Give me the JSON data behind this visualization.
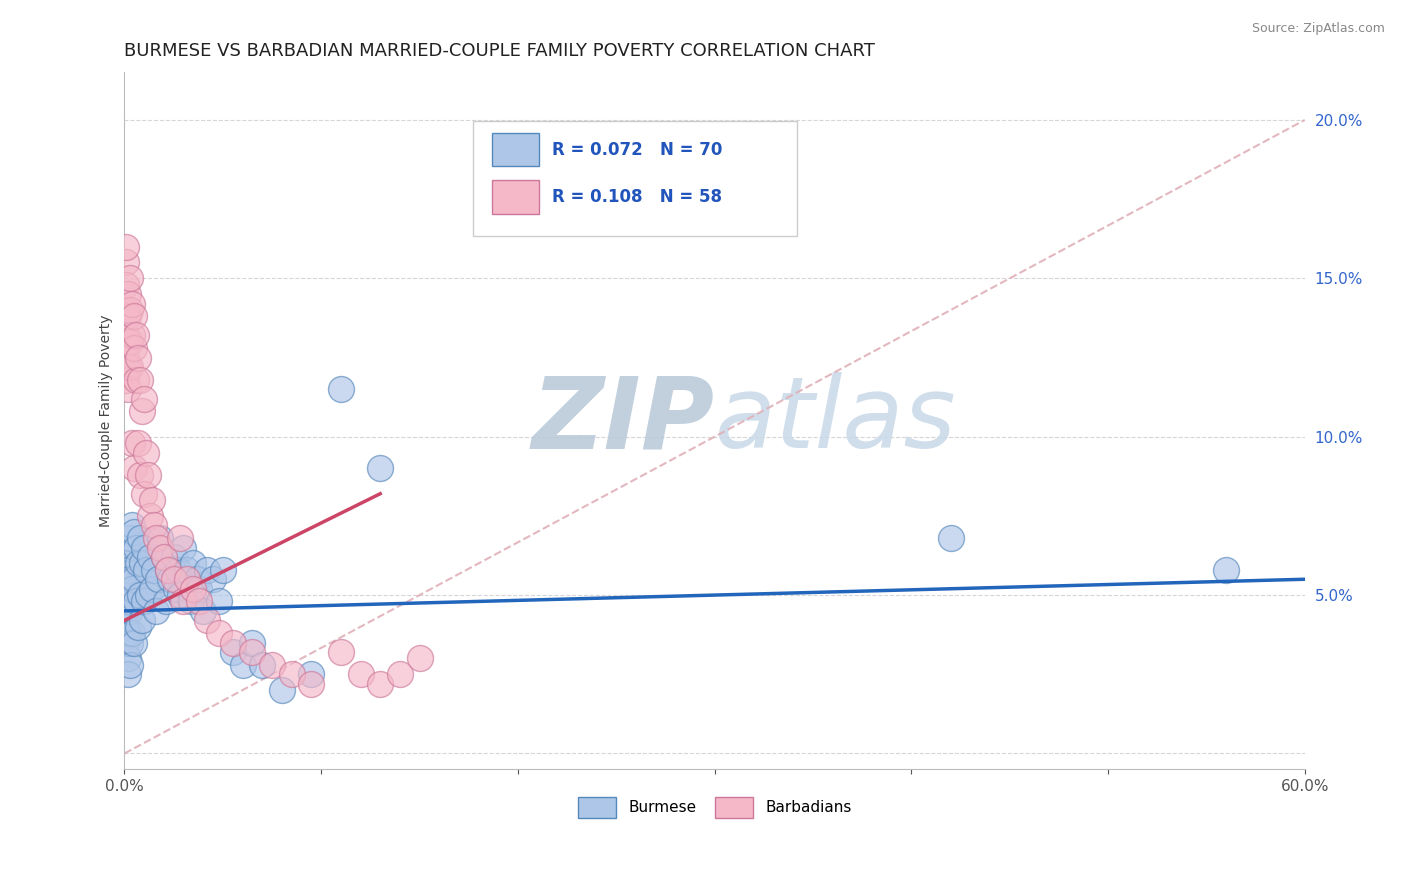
{
  "title": "BURMESE VS BARBADIAN MARRIED-COUPLE FAMILY POVERTY CORRELATION CHART",
  "source_text": "Source: ZipAtlas.com",
  "ylabel": "Married-Couple Family Poverty",
  "xlim": [
    0.0,
    0.6
  ],
  "ylim": [
    -0.005,
    0.215
  ],
  "xticks": [
    0.0,
    0.1,
    0.2,
    0.3,
    0.4,
    0.5,
    0.6
  ],
  "xticklabels": [
    "0.0%",
    "",
    "",
    "",
    "",
    "",
    "60.0%"
  ],
  "yticks": [
    0.0,
    0.05,
    0.1,
    0.15,
    0.2
  ],
  "yticklabels": [
    "",
    "5.0%",
    "10.0%",
    "15.0%",
    "20.0%"
  ],
  "burmese_color": "#aec6e8",
  "burmese_edge_color": "#5588bb",
  "barbadian_color": "#f4b8c8",
  "barbadian_edge_color": "#cc7799",
  "burmese_line_color": "#2266bb",
  "barbadian_line_color": "#cc4466",
  "ref_line_color": "#e0b0b8",
  "watermark_color": "#ccd8e8",
  "background_color": "#ffffff",
  "title_fontsize": 13,
  "axis_label_fontsize": 10,
  "tick_fontsize": 11,
  "legend_color": "#2255bb",
  "burmese_x": [
    0.001,
    0.001,
    0.001,
    0.001,
    0.001,
    0.001,
    0.002,
    0.002,
    0.002,
    0.002,
    0.002,
    0.002,
    0.003,
    0.003,
    0.003,
    0.003,
    0.003,
    0.004,
    0.004,
    0.004,
    0.005,
    0.005,
    0.005,
    0.006,
    0.006,
    0.007,
    0.007,
    0.008,
    0.008,
    0.009,
    0.009,
    0.01,
    0.01,
    0.011,
    0.012,
    0.013,
    0.014,
    0.015,
    0.016,
    0.017,
    0.018,
    0.02,
    0.021,
    0.022,
    0.023,
    0.025,
    0.026,
    0.027,
    0.028,
    0.03,
    0.032,
    0.034,
    0.035,
    0.037,
    0.038,
    0.04,
    0.042,
    0.045,
    0.048,
    0.05,
    0.055,
    0.06,
    0.065,
    0.07,
    0.08,
    0.095,
    0.11,
    0.13,
    0.42,
    0.56
  ],
  "burmese_y": [
    0.055,
    0.06,
    0.05,
    0.045,
    0.04,
    0.035,
    0.065,
    0.058,
    0.048,
    0.038,
    0.03,
    0.025,
    0.068,
    0.055,
    0.045,
    0.035,
    0.028,
    0.072,
    0.052,
    0.038,
    0.07,
    0.055,
    0.035,
    0.065,
    0.048,
    0.06,
    0.04,
    0.068,
    0.05,
    0.06,
    0.042,
    0.065,
    0.048,
    0.058,
    0.05,
    0.062,
    0.052,
    0.058,
    0.045,
    0.055,
    0.068,
    0.062,
    0.048,
    0.058,
    0.055,
    0.062,
    0.052,
    0.058,
    0.05,
    0.065,
    0.058,
    0.048,
    0.06,
    0.055,
    0.052,
    0.045,
    0.058,
    0.055,
    0.048,
    0.058,
    0.032,
    0.028,
    0.035,
    0.028,
    0.02,
    0.025,
    0.115,
    0.09,
    0.068,
    0.058
  ],
  "barbadian_x": [
    0.001,
    0.001,
    0.001,
    0.001,
    0.001,
    0.001,
    0.001,
    0.002,
    0.002,
    0.002,
    0.002,
    0.002,
    0.003,
    0.003,
    0.003,
    0.003,
    0.004,
    0.004,
    0.004,
    0.005,
    0.005,
    0.005,
    0.006,
    0.006,
    0.007,
    0.007,
    0.008,
    0.008,
    0.009,
    0.01,
    0.01,
    0.011,
    0.012,
    0.013,
    0.014,
    0.015,
    0.016,
    0.018,
    0.02,
    0.022,
    0.025,
    0.028,
    0.03,
    0.032,
    0.035,
    0.038,
    0.042,
    0.048,
    0.055,
    0.065,
    0.075,
    0.085,
    0.095,
    0.11,
    0.12,
    0.13,
    0.14,
    0.15
  ],
  "barbadian_y": [
    0.155,
    0.148,
    0.14,
    0.132,
    0.125,
    0.118,
    0.16,
    0.145,
    0.138,
    0.13,
    0.122,
    0.115,
    0.15,
    0.14,
    0.13,
    0.122,
    0.142,
    0.132,
    0.098,
    0.138,
    0.128,
    0.09,
    0.132,
    0.118,
    0.125,
    0.098,
    0.118,
    0.088,
    0.108,
    0.112,
    0.082,
    0.095,
    0.088,
    0.075,
    0.08,
    0.072,
    0.068,
    0.065,
    0.062,
    0.058,
    0.055,
    0.068,
    0.048,
    0.055,
    0.052,
    0.048,
    0.042,
    0.038,
    0.035,
    0.032,
    0.028,
    0.025,
    0.022,
    0.032,
    0.025,
    0.022,
    0.025,
    0.03
  ],
  "burmese_line_x": [
    0.0,
    0.6
  ],
  "burmese_line_y": [
    0.045,
    0.055
  ],
  "barbadian_line_x": [
    0.0,
    0.13
  ],
  "barbadian_line_y": [
    0.042,
    0.082
  ],
  "ref_line_x": [
    0.0,
    0.6
  ],
  "ref_line_y": [
    0.0,
    0.2
  ]
}
